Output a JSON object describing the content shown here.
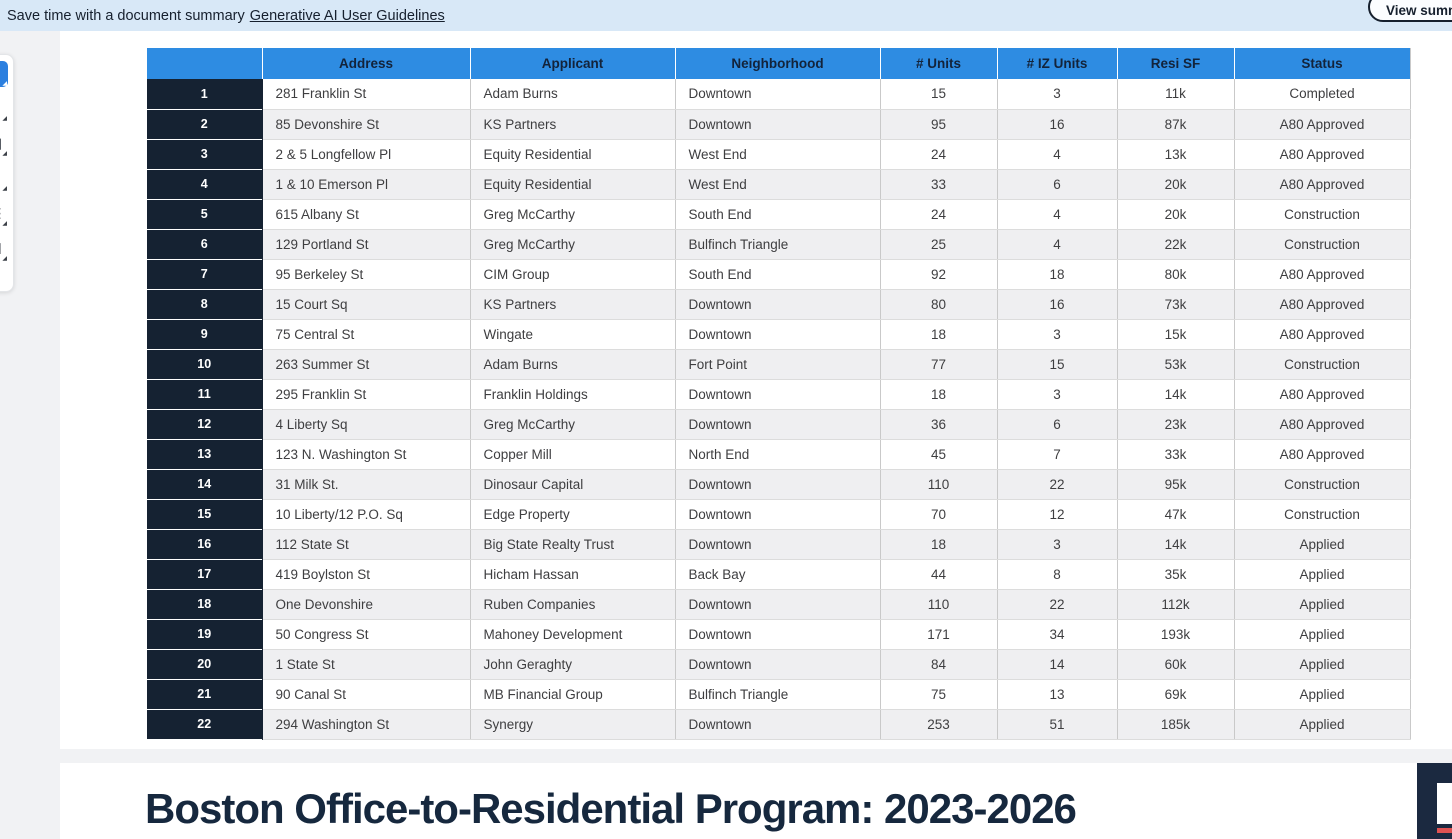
{
  "banner": {
    "message": "Save time with a document summary",
    "link_label": "Generative AI User Guidelines",
    "button_label": "View summ",
    "bg_color": "#d8e8f7",
    "progress_color": "#cd4a4a"
  },
  "toolbar": {
    "tools": [
      {
        "name": "select-tool-icon",
        "glyph": "▣",
        "selected": true
      },
      {
        "name": "highlight-tool-icon",
        "glyph": "✎",
        "selected": false
      },
      {
        "name": "shape-tool-icon",
        "glyph": "❏",
        "selected": false
      },
      {
        "name": "text-tool-icon",
        "glyph": "T",
        "selected": false
      },
      {
        "name": "list-tool-icon",
        "glyph": "☰",
        "selected": false
      },
      {
        "name": "export-tool-icon",
        "glyph": "⇲",
        "selected": false
      }
    ]
  },
  "table": {
    "columns": [
      {
        "key": "num",
        "label": ""
      },
      {
        "key": "address",
        "label": "Address"
      },
      {
        "key": "applicant",
        "label": "Applicant"
      },
      {
        "key": "neighborhood",
        "label": "Neighborhood"
      },
      {
        "key": "units",
        "label": "# Units"
      },
      {
        "key": "iz_units",
        "label": "# IZ Units"
      },
      {
        "key": "resi_sf",
        "label": "Resi SF"
      },
      {
        "key": "status",
        "label": "Status"
      }
    ],
    "header_bg": "#2e8ce2",
    "index_col_bg": "#152232",
    "rows": [
      {
        "num": "1",
        "address": "281 Franklin St",
        "applicant": "Adam Burns",
        "neighborhood": "Downtown",
        "units": "15",
        "iz_units": "3",
        "resi_sf": "11k",
        "status": "Completed"
      },
      {
        "num": "2",
        "address": "85 Devonshire St",
        "applicant": "KS Partners",
        "neighborhood": "Downtown",
        "units": "95",
        "iz_units": "16",
        "resi_sf": "87k",
        "status": "A80 Approved"
      },
      {
        "num": "3",
        "address": "2 & 5 Longfellow Pl",
        "applicant": "Equity Residential",
        "neighborhood": "West End",
        "units": "24",
        "iz_units": "4",
        "resi_sf": "13k",
        "status": "A80 Approved"
      },
      {
        "num": "4",
        "address": "1 & 10 Emerson Pl",
        "applicant": "Equity Residential",
        "neighborhood": "West End",
        "units": "33",
        "iz_units": "6",
        "resi_sf": "20k",
        "status": "A80 Approved"
      },
      {
        "num": "5",
        "address": "615 Albany St",
        "applicant": "Greg McCarthy",
        "neighborhood": "South End",
        "units": "24",
        "iz_units": "4",
        "resi_sf": "20k",
        "status": "Construction"
      },
      {
        "num": "6",
        "address": "129 Portland St",
        "applicant": "Greg McCarthy",
        "neighborhood": "Bulfinch Triangle",
        "units": "25",
        "iz_units": "4",
        "resi_sf": "22k",
        "status": "Construction"
      },
      {
        "num": "7",
        "address": "95 Berkeley St",
        "applicant": "CIM Group",
        "neighborhood": "South End",
        "units": "92",
        "iz_units": "18",
        "resi_sf": "80k",
        "status": "A80 Approved"
      },
      {
        "num": "8",
        "address": "15 Court Sq",
        "applicant": "KS Partners",
        "neighborhood": "Downtown",
        "units": "80",
        "iz_units": "16",
        "resi_sf": "73k",
        "status": "A80 Approved"
      },
      {
        "num": "9",
        "address": "75 Central St",
        "applicant": "Wingate",
        "neighborhood": "Downtown",
        "units": "18",
        "iz_units": "3",
        "resi_sf": "15k",
        "status": "A80 Approved"
      },
      {
        "num": "10",
        "address": "263 Summer St",
        "applicant": "Adam Burns",
        "neighborhood": "Fort Point",
        "units": "77",
        "iz_units": "15",
        "resi_sf": "53k",
        "status": "Construction"
      },
      {
        "num": "11",
        "address": "295 Franklin St",
        "applicant": "Franklin Holdings",
        "neighborhood": "Downtown",
        "units": "18",
        "iz_units": "3",
        "resi_sf": "14k",
        "status": "A80 Approved"
      },
      {
        "num": "12",
        "address": "4 Liberty Sq",
        "applicant": "Greg McCarthy",
        "neighborhood": "Downtown",
        "units": "36",
        "iz_units": "6",
        "resi_sf": "23k",
        "status": "A80 Approved"
      },
      {
        "num": "13",
        "address": "123 N. Washington St",
        "applicant": "Copper Mill",
        "neighborhood": "North End",
        "units": "45",
        "iz_units": "7",
        "resi_sf": "33k",
        "status": "A80 Approved"
      },
      {
        "num": "14",
        "address": "31 Milk St.",
        "applicant": "Dinosaur Capital",
        "neighborhood": "Downtown",
        "units": "110",
        "iz_units": "22",
        "resi_sf": "95k",
        "status": "Construction"
      },
      {
        "num": "15",
        "address": "10 Liberty/12 P.O. Sq",
        "applicant": "Edge Property",
        "neighborhood": "Downtown",
        "units": "70",
        "iz_units": "12",
        "resi_sf": "47k",
        "status": "Construction"
      },
      {
        "num": "16",
        "address": "112 State St",
        "applicant": "Big State Realty Trust",
        "neighborhood": "Downtown",
        "units": "18",
        "iz_units": "3",
        "resi_sf": "14k",
        "status": "Applied"
      },
      {
        "num": "17",
        "address": "419 Boylston St",
        "applicant": "Hicham Hassan",
        "neighborhood": "Back Bay",
        "units": "44",
        "iz_units": "8",
        "resi_sf": "35k",
        "status": "Applied"
      },
      {
        "num": "18",
        "address": "One Devonshire",
        "applicant": "Ruben Companies",
        "neighborhood": "Downtown",
        "units": "110",
        "iz_units": "22",
        "resi_sf": "112k",
        "status": "Applied"
      },
      {
        "num": "19",
        "address": "50 Congress St",
        "applicant": "Mahoney Development",
        "neighborhood": "Downtown",
        "units": "171",
        "iz_units": "34",
        "resi_sf": "193k",
        "status": "Applied"
      },
      {
        "num": "20",
        "address": "1 State St",
        "applicant": "John Geraghty",
        "neighborhood": "Downtown",
        "units": "84",
        "iz_units": "14",
        "resi_sf": "60k",
        "status": "Applied"
      },
      {
        "num": "21",
        "address": "90 Canal St",
        "applicant": "MB Financial Group",
        "neighborhood": "Bulfinch Triangle",
        "units": "75",
        "iz_units": "13",
        "resi_sf": "69k",
        "status": "Applied"
      },
      {
        "num": "22",
        "address": "294 Washington St",
        "applicant": "Synergy",
        "neighborhood": "Downtown",
        "units": "253",
        "iz_units": "51",
        "resi_sf": "185k",
        "status": "Applied"
      }
    ]
  },
  "slide": {
    "title": "Boston Office-to-Residential Program: 2023-2026",
    "title_color": "#16283e",
    "thumbnail_bg": "#1b2940",
    "thumbnail_accent": "#e05252"
  }
}
